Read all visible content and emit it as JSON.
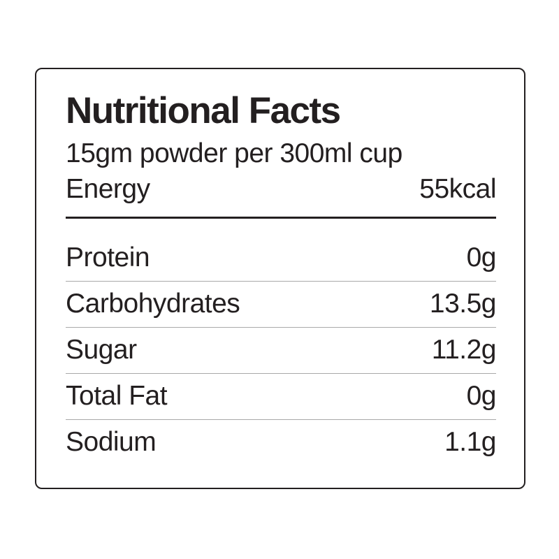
{
  "label": {
    "title": "Nutritional Facts",
    "serving_size": "15gm powder per 300ml cup",
    "energy": {
      "name": "Energy",
      "value": "55kcal"
    },
    "nutrients": [
      {
        "name": "Protein",
        "value": "0g"
      },
      {
        "name": "Carbohydrates",
        "value": "13.5g"
      },
      {
        "name": "Sugar",
        "value": "11.2g"
      },
      {
        "name": "Total Fat",
        "value": "0g"
      },
      {
        "name": "Sodium",
        "value": "1.1g"
      }
    ],
    "colors": {
      "text": "#231f20",
      "border": "#231f20",
      "thick_divider": "#231f20",
      "row_separator": "#a9a9a9",
      "background": "#ffffff"
    }
  }
}
